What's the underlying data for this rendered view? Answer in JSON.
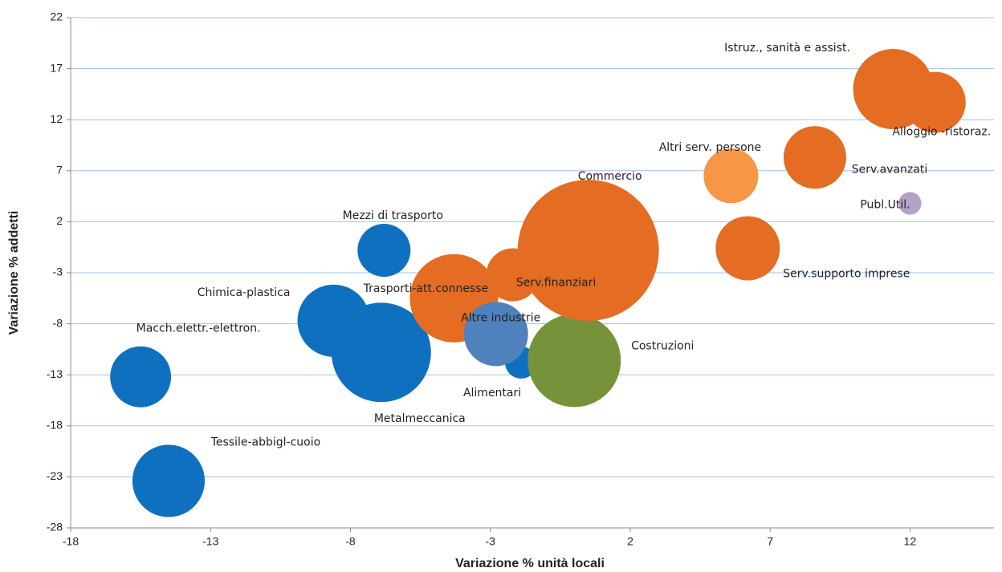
{
  "chart_data": {
    "type": "bubble",
    "x_label": "Variazione % unità locali",
    "y_label": "Variazione % addetti",
    "xlim": [
      -18,
      15
    ],
    "xticks": [
      -18,
      -13,
      -8,
      -3,
      2,
      7,
      12
    ],
    "ylim": [
      -28,
      22
    ],
    "yticks": [
      22,
      17,
      12,
      7,
      2,
      -3,
      -8,
      -13,
      -18,
      -23,
      -28
    ],
    "grid": true,
    "points": [
      {
        "name": "Macch.elettr.-elettron.",
        "x": -15.5,
        "y": -13.2,
        "size": 14.4,
        "color": "#1070c0"
      },
      {
        "name": "Tessile-abbigl-cuoio",
        "x": -14.5,
        "y": -23.4,
        "size": 20.3,
        "color": "#1070c0"
      },
      {
        "name": "Chimica-plastica",
        "x": -8.6,
        "y": -7.7,
        "size": 20.3,
        "color": "#1070c0"
      },
      {
        "name": "Metalmeccanica",
        "x": -6.9,
        "y": -10.8,
        "size": 38.4,
        "color": "#1070c0"
      },
      {
        "name": "Mezzi di trasporto",
        "x": -6.8,
        "y": -0.8,
        "size": 10.9,
        "color": "#1070c0"
      },
      {
        "name": "Trasporti-att.connesse",
        "x": -4.3,
        "y": -5.5,
        "size": 30.3,
        "color": "#e46c23"
      },
      {
        "name": "Serv.finanziari",
        "x": -2.2,
        "y": -3.2,
        "size": 10.9,
        "color": "#e46c23"
      },
      {
        "name": "Alimentari",
        "x": -1.9,
        "y": -11.8,
        "size": 4.0,
        "color": "#1070c0"
      },
      {
        "name": "Altre industrie",
        "x": -2.8,
        "y": -9.0,
        "size": 16.0,
        "color": "#4f81bd"
      },
      {
        "name": "Costruzioni",
        "x": 0.0,
        "y": -11.6,
        "size": 33.6,
        "color": "#76933c"
      },
      {
        "name": "Commercio",
        "x": 0.5,
        "y": -0.8,
        "size": 77.4,
        "color": "#e46c23"
      },
      {
        "name": "Altri serv. persone",
        "x": 5.6,
        "y": 6.5,
        "size": 11.6,
        "color": "#f79646"
      },
      {
        "name": "Serv.supporto imprese",
        "x": 6.2,
        "y": -0.6,
        "size": 16.0,
        "color": "#e46c23"
      },
      {
        "name": "Serv.avanzati",
        "x": 8.6,
        "y": 8.3,
        "size": 15.2,
        "color": "#e46c23"
      },
      {
        "name": "Istruz., sanità e assist.",
        "x": 11.4,
        "y": 15.0,
        "size": 25.0,
        "color": "#e46c23"
      },
      {
        "name": "Alloggio -ristoraz.",
        "x": 12.9,
        "y": 13.7,
        "size": 14.4,
        "color": "#e46c23"
      },
      {
        "name": "Publ.Util.",
        "x": 12.0,
        "y": 3.8,
        "size": 2.0,
        "color": "#b3a2c7"
      }
    ]
  }
}
